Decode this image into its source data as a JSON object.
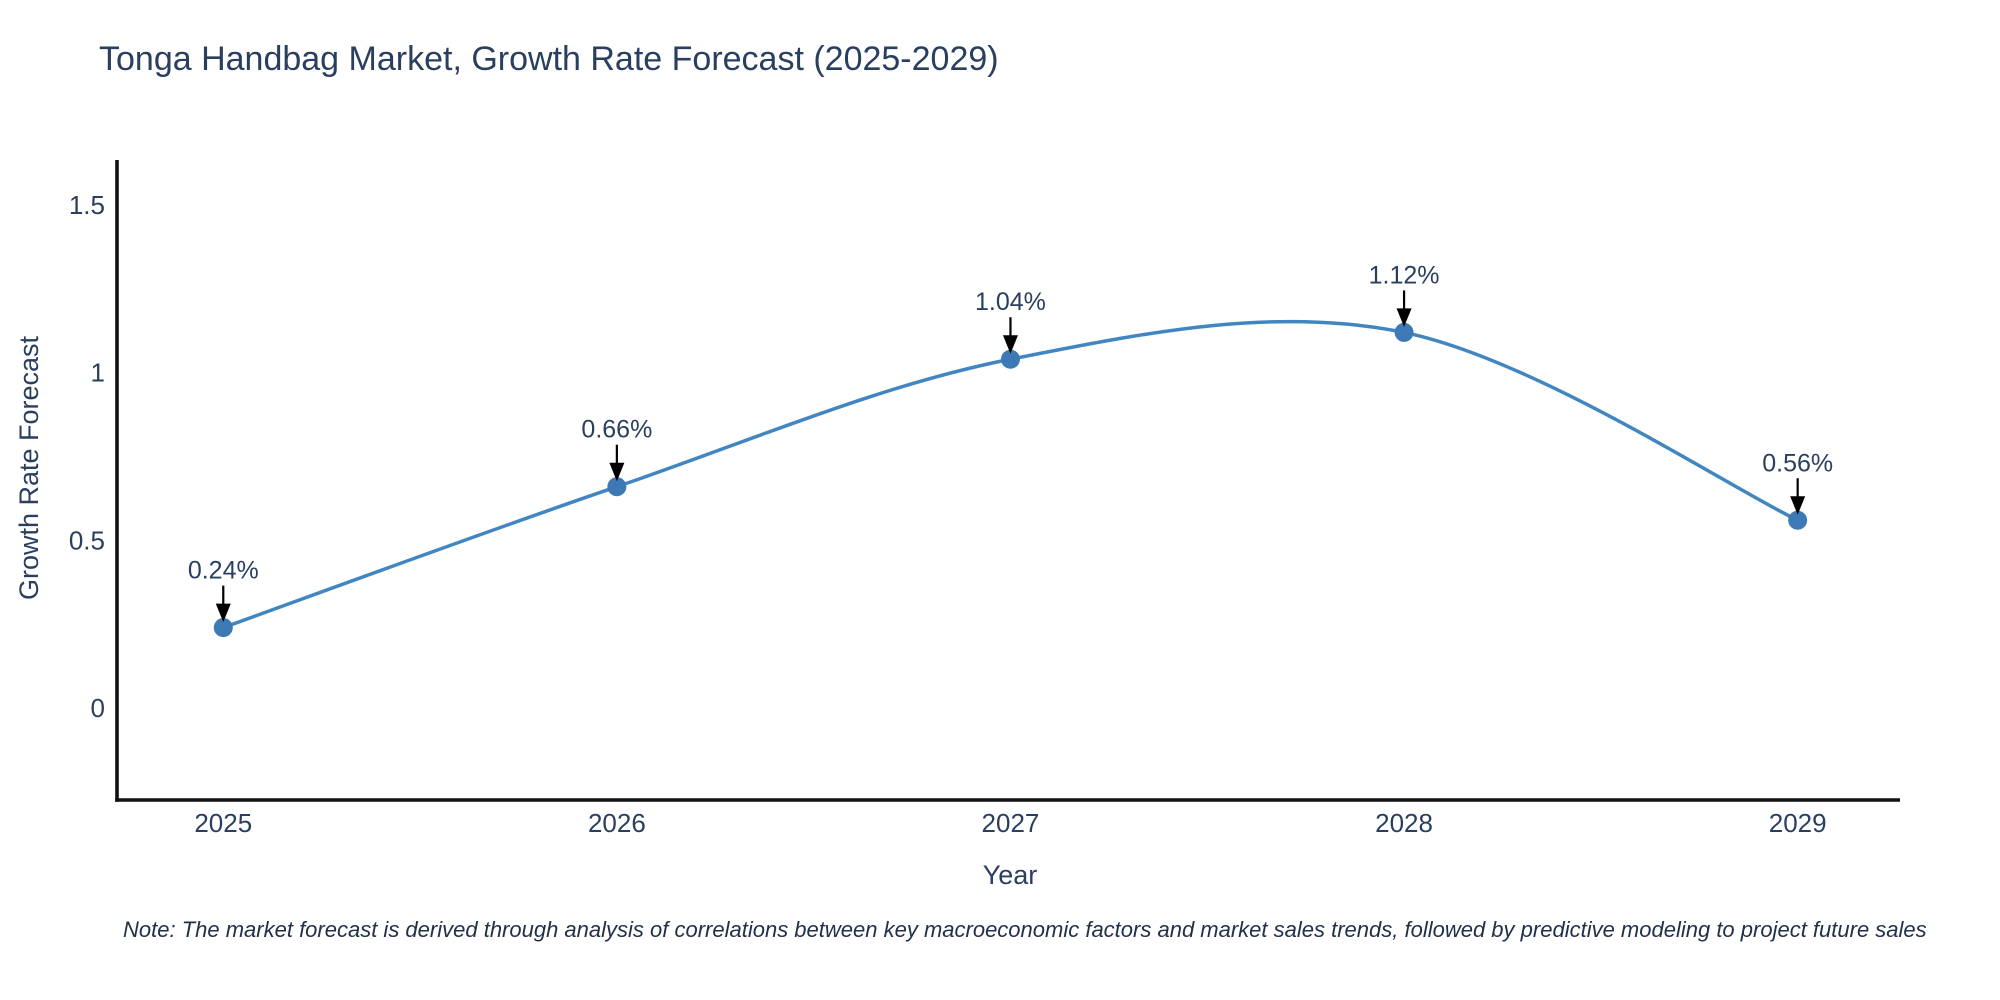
{
  "note": {
    "text": "Note: The market forecast is derived through analysis of correlations between key macroeconomic factors and market sales trends, followed by predictive modeling to project future sales"
  },
  "chart_data": {
    "type": "line",
    "title": "Tonga Handbag Market, Growth Rate Forecast (2025-2029)",
    "xlabel": "Year",
    "ylabel": "Growth Rate Forecast",
    "x": [
      2025,
      2026,
      2027,
      2028,
      2029
    ],
    "xticks": [
      "2025",
      "2026",
      "2027",
      "2028",
      "2029"
    ],
    "yticks": [
      0,
      0.5,
      1,
      1.5
    ],
    "series": [
      {
        "name": "Growth Rate Forecast",
        "values": [
          0.24,
          0.66,
          1.04,
          1.12,
          0.56
        ],
        "point_labels": [
          "0.24%",
          "0.66%",
          "1.04%",
          "1.12%",
          "0.56%"
        ]
      }
    ],
    "xlim": [
      2024.73,
      2029.26
    ],
    "ylim": [
      -0.274,
      1.634
    ],
    "grid": false,
    "legend": false,
    "line_shape": "spline",
    "colors": {
      "line": "#4186c0",
      "marker": "#3c79b5",
      "arrow": "#000000",
      "axis": "#111111",
      "text": "#2a3f5f"
    }
  }
}
